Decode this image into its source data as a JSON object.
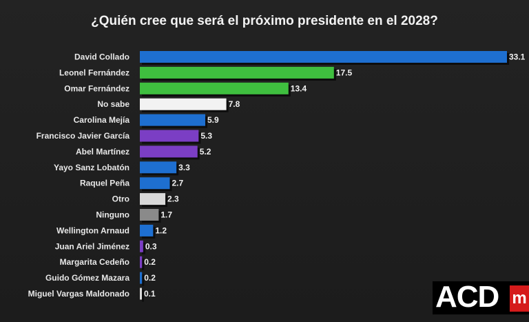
{
  "chart_data": {
    "type": "bar",
    "orientation": "horizontal",
    "title": "¿Quién cree que será el próximo presidente en el 2028?",
    "categories": [
      "David Collado",
      "Leonel Fernández",
      "Omar Fernández",
      "No sabe",
      "Carolina Mejía",
      "Francisco Javier García",
      "Abel Martínez",
      "Yayo Sanz Lobatón",
      "Raquel Peña",
      "Otro",
      "Ninguno",
      "Wellington Arnaud",
      "Juan Ariel Jiménez",
      "Margarita Cedeño",
      "Guido Gómez Mazara",
      "Miguel Vargas Maldonado"
    ],
    "values": [
      33.1,
      17.5,
      13.4,
      7.8,
      5.9,
      5.3,
      5.2,
      3.3,
      2.7,
      2.3,
      1.7,
      1.2,
      0.3,
      0.2,
      0.2,
      0.1
    ],
    "value_labels": [
      "33.1",
      "17.5",
      "13.4",
      "7.8",
      "5.9",
      "5.3",
      "5.2",
      "3.3",
      "2.7",
      "2.3",
      "1.7",
      "1.2",
      "0.3",
      "0.2",
      "0.2",
      "0.1"
    ],
    "bar_colors": [
      "#1e6fd0",
      "#3fbf3f",
      "#3fbf3f",
      "#f2f2f2",
      "#1e6fd0",
      "#7b3ec4",
      "#7b3ec4",
      "#1e6fd0",
      "#1e6fd0",
      "#d9d9d9",
      "#8a8a8a",
      "#1e6fd0",
      "#7b3ec4",
      "#7b3ec4",
      "#1e6fd0",
      "#d9d9d9"
    ],
    "xlim": [
      0,
      33.1
    ],
    "xlabel": "",
    "ylabel": ""
  },
  "logo": {
    "text": "ACD",
    "suffix": "m"
  }
}
